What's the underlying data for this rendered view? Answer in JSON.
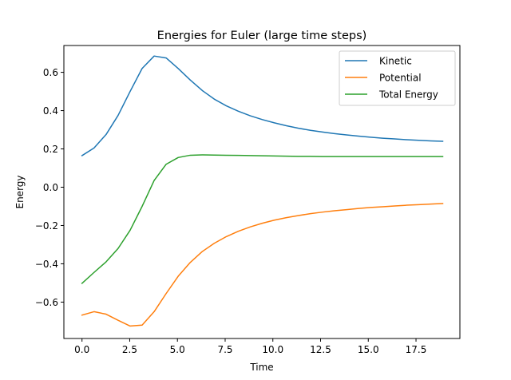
{
  "chart_data": {
    "type": "line",
    "title": "Energies for Euler (large time steps)",
    "xlabel": "Time",
    "ylabel": "Energy",
    "xlim": [
      -0.95,
      19.8
    ],
    "ylim": [
      -0.79,
      0.74
    ],
    "xticks": [
      0.0,
      2.5,
      5.0,
      7.5,
      10.0,
      12.5,
      15.0,
      17.5
    ],
    "xtick_labels": [
      "0.0",
      "2.5",
      "5.0",
      "7.5",
      "10.0",
      "12.5",
      "15.0",
      "17.5"
    ],
    "yticks": [
      -0.6,
      -0.4,
      -0.2,
      0.0,
      0.2,
      0.4,
      0.6
    ],
    "ytick_labels": [
      "−0.6",
      "−0.4",
      "−0.2",
      "0.0",
      "0.2",
      "0.4",
      "0.6"
    ],
    "grid": false,
    "legend_position": "top-right",
    "x": [
      0.0,
      0.63,
      1.26,
      1.89,
      2.52,
      3.15,
      3.78,
      4.41,
      5.04,
      5.67,
      6.3,
      6.93,
      7.56,
      8.19,
      8.82,
      9.45,
      10.08,
      10.71,
      11.34,
      11.97,
      12.6,
      13.23,
      13.86,
      14.49,
      15.12,
      15.75,
      16.38,
      17.01,
      17.64,
      18.27,
      18.9
    ],
    "series": [
      {
        "name": "Kinetic",
        "color": "#1f77b4",
        "values": [
          0.165,
          0.205,
          0.275,
          0.375,
          0.5,
          0.62,
          0.685,
          0.675,
          0.62,
          0.56,
          0.505,
          0.46,
          0.425,
          0.397,
          0.373,
          0.353,
          0.336,
          0.321,
          0.308,
          0.297,
          0.288,
          0.28,
          0.273,
          0.267,
          0.261,
          0.256,
          0.252,
          0.248,
          0.245,
          0.242,
          0.24
        ]
      },
      {
        "name": "Potential",
        "color": "#ff7f0e",
        "values": [
          -0.668,
          -0.65,
          -0.663,
          -0.695,
          -0.725,
          -0.72,
          -0.65,
          -0.555,
          -0.465,
          -0.393,
          -0.336,
          -0.293,
          -0.258,
          -0.23,
          -0.207,
          -0.188,
          -0.172,
          -0.159,
          -0.148,
          -0.138,
          -0.13,
          -0.123,
          -0.117,
          -0.111,
          -0.106,
          -0.102,
          -0.098,
          -0.094,
          -0.091,
          -0.088,
          -0.085
        ]
      },
      {
        "name": "Total Energy",
        "color": "#2ca02c",
        "values": [
          -0.502,
          -0.445,
          -0.39,
          -0.32,
          -0.225,
          -0.1,
          0.035,
          0.12,
          0.155,
          0.167,
          0.169,
          0.168,
          0.167,
          0.166,
          0.165,
          0.164,
          0.163,
          0.162,
          0.161,
          0.161,
          0.16,
          0.16,
          0.16,
          0.16,
          0.16,
          0.16,
          0.16,
          0.16,
          0.16,
          0.16,
          0.16
        ]
      }
    ]
  }
}
